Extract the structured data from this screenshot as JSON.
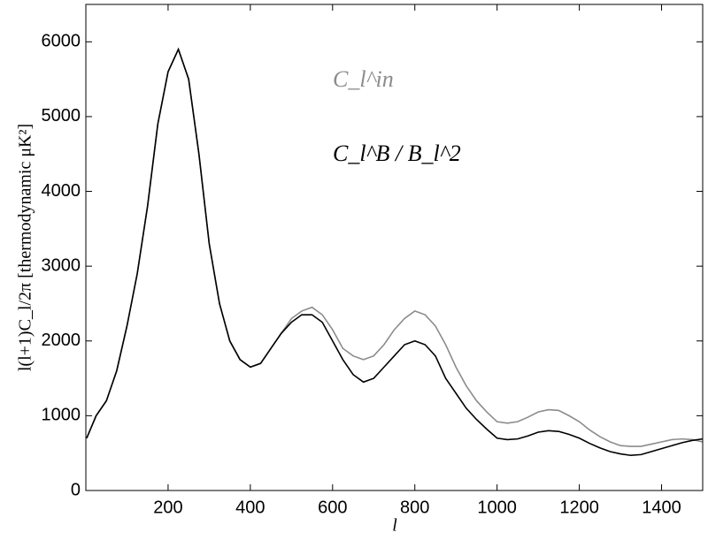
{
  "chart_data": {
    "type": "line",
    "x_label": "l",
    "y_label": "l(l+1)C_l/2π [thermodynamic μK²]",
    "x": [
      2,
      25,
      50,
      75,
      100,
      125,
      150,
      175,
      200,
      225,
      250,
      275,
      300,
      325,
      350,
      375,
      400,
      425,
      450,
      475,
      500,
      525,
      550,
      575,
      600,
      625,
      650,
      675,
      700,
      725,
      750,
      775,
      800,
      825,
      850,
      875,
      900,
      925,
      950,
      975,
      1000,
      1025,
      1050,
      1075,
      1100,
      1125,
      1150,
      1175,
      1200,
      1225,
      1250,
      1275,
      1300,
      1325,
      1350,
      1375,
      1400,
      1425,
      1450,
      1475,
      1500
    ],
    "series": [
      {
        "name": "C_l^in",
        "color": "#8c8c8c",
        "values": [
          700,
          1000,
          1200,
          1600,
          2200,
          2900,
          3800,
          4900,
          5600,
          5900,
          5500,
          4500,
          3300,
          2500,
          2000,
          1750,
          1650,
          1700,
          1900,
          2100,
          2300,
          2400,
          2450,
          2350,
          2150,
          1900,
          1800,
          1750,
          1800,
          1950,
          2150,
          2300,
          2400,
          2350,
          2200,
          1950,
          1650,
          1400,
          1200,
          1050,
          920,
          900,
          920,
          980,
          1050,
          1080,
          1070,
          1000,
          920,
          810,
          720,
          650,
          600,
          590,
          590,
          620,
          650,
          680,
          690,
          680,
          650
        ]
      },
      {
        "name": "C_l^B / B_l^2",
        "color": "#000000",
        "values": [
          700,
          1000,
          1200,
          1600,
          2200,
          2900,
          3800,
          4900,
          5600,
          5900,
          5500,
          4500,
          3300,
          2500,
          2000,
          1750,
          1650,
          1700,
          1900,
          2100,
          2250,
          2350,
          2350,
          2250,
          2000,
          1750,
          1550,
          1450,
          1500,
          1650,
          1800,
          1950,
          2000,
          1950,
          1800,
          1500,
          1300,
          1100,
          950,
          820,
          700,
          680,
          690,
          730,
          780,
          800,
          790,
          750,
          700,
          630,
          570,
          520,
          490,
          470,
          480,
          520,
          560,
          600,
          640,
          670,
          690
        ]
      }
    ],
    "xlim": [
      0,
      1500
    ],
    "xticks": [
      200,
      400,
      600,
      800,
      1000,
      1200,
      1400
    ],
    "ylim": [
      0,
      6500
    ],
    "yticks": [
      0,
      1000,
      2000,
      3000,
      4000,
      5000,
      6000
    ]
  }
}
